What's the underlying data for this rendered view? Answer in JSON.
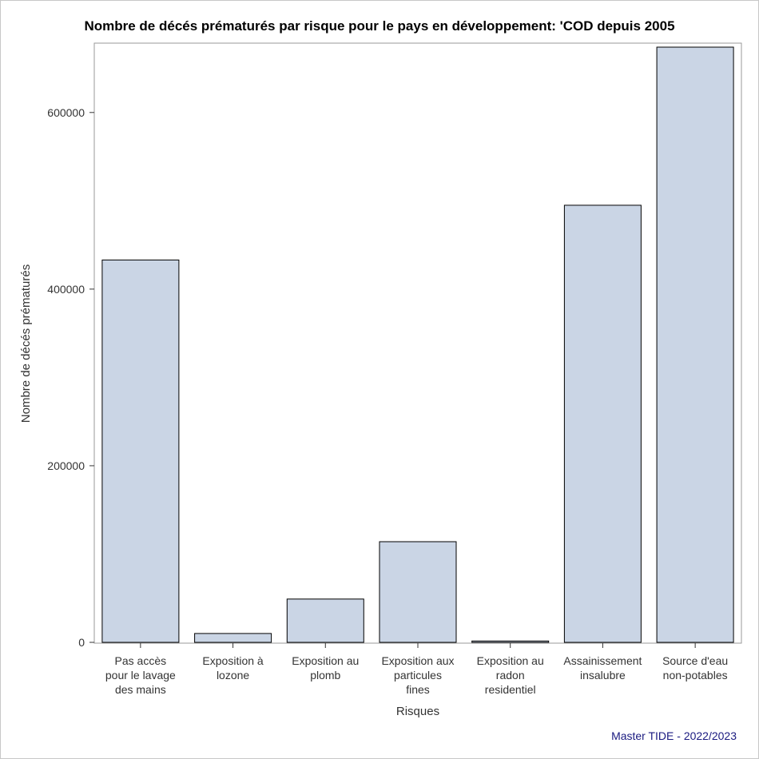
{
  "chart_data": {
    "type": "bar",
    "title": "Nombre de décés prématurés par risque pour le pays en développement: 'COD depuis 2005",
    "xlabel": "Risques",
    "ylabel": "Nombre de décés prématurés",
    "categories": [
      [
        "Pas accès",
        "pour le lavage",
        "des mains"
      ],
      [
        "Exposition à",
        "lozone"
      ],
      [
        "Exposition au",
        "plomb"
      ],
      [
        "Exposition aux",
        "particules",
        "fines"
      ],
      [
        "Exposition au",
        "radon",
        "residentiel"
      ],
      [
        "Assainissement",
        "insalubre"
      ],
      [
        "Source d'eau",
        "non-potables"
      ]
    ],
    "values": [
      433000,
      10000,
      49000,
      114000,
      1500,
      495000,
      674000
    ],
    "ylim": [
      0,
      674000
    ],
    "yticks": [
      0,
      200000,
      400000,
      600000
    ],
    "grid": false,
    "bar_color": "#cad5e5",
    "bar_edge_color": "#000000"
  },
  "footnote": {
    "text": "Master TIDE - 2022/2023",
    "color": "#1a1a80"
  }
}
